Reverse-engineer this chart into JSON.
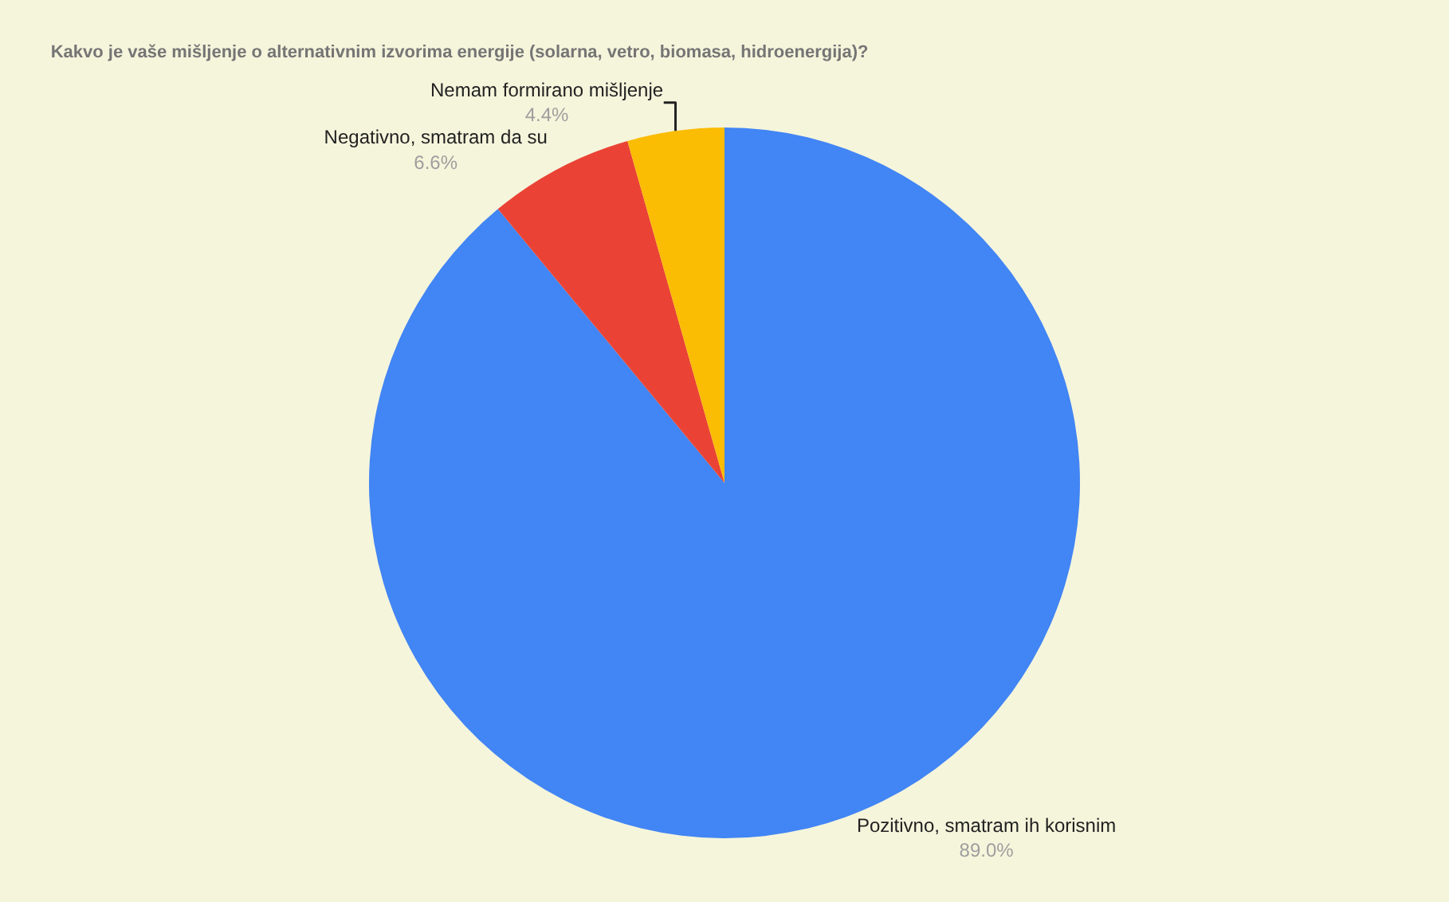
{
  "chart_data": {
    "type": "pie",
    "title": "Kakvo je vaše mišljenje o alternativnim izvorima energije (solarna, vetro, biomasa, hidroenergija)?",
    "categories": [
      "Pozitivno, smatram ih korisnim",
      "Negativno, smatram da su",
      "Nemam formirano mišljenje"
    ],
    "values": [
      89.0,
      6.6,
      4.4
    ],
    "value_labels": [
      "89.0%",
      "6.6%",
      "4.4%"
    ],
    "colors": [
      "#4285f4",
      "#ea4335",
      "#fbbc04"
    ],
    "legend": false
  }
}
